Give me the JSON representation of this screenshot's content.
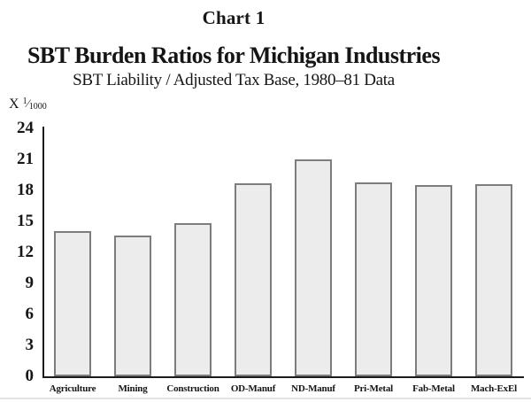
{
  "chart_data": {
    "type": "bar",
    "chart_label": "Chart 1",
    "title": "SBT Burden Ratios for Michigan Industries",
    "subtitle": "SBT Liability / Adjusted Tax Base, 1980–81 Data",
    "y_axis_label": {
      "prefix": "X",
      "numerator": "1",
      "slash": "⁄",
      "denominator": "1000"
    },
    "categories": [
      "Agriculture",
      "Mining",
      "Construction",
      "OD-Manuf",
      "ND-Manuf",
      "Pri-Metal",
      "Fab-Metal",
      "Mach-ExEl"
    ],
    "values": [
      14.1,
      13.6,
      14.8,
      18.7,
      21.0,
      18.8,
      18.5,
      18.6
    ],
    "ylim": [
      0,
      24
    ],
    "yticks": [
      24,
      21,
      18,
      15,
      12,
      9,
      6,
      3,
      0
    ],
    "grid": false,
    "legend": "none",
    "colors": {
      "background": "#ffffff",
      "text": "#151515",
      "axis": "#1c1c1c",
      "bar_fill": "#ececec",
      "bar_border": "#7d7d7d"
    }
  }
}
